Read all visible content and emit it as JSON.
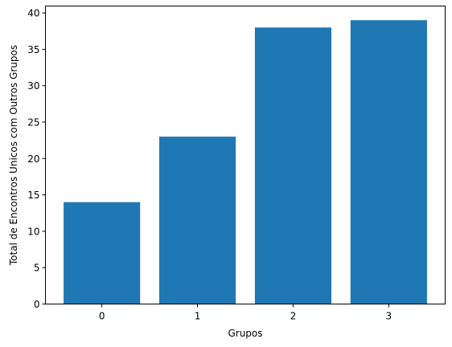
{
  "chart_data": {
    "type": "bar",
    "categories": [
      "0",
      "1",
      "2",
      "3"
    ],
    "values": [
      14,
      23,
      38,
      39
    ],
    "title": "",
    "xlabel": "Grupos",
    "ylabel": "Total de Encontros Unicos com Outros Grupos",
    "ylim": [
      0,
      40.95
    ],
    "yticks": [
      0,
      5,
      10,
      15,
      20,
      25,
      30,
      35,
      40
    ],
    "grid": false,
    "bar_color": "#1f77b4"
  }
}
